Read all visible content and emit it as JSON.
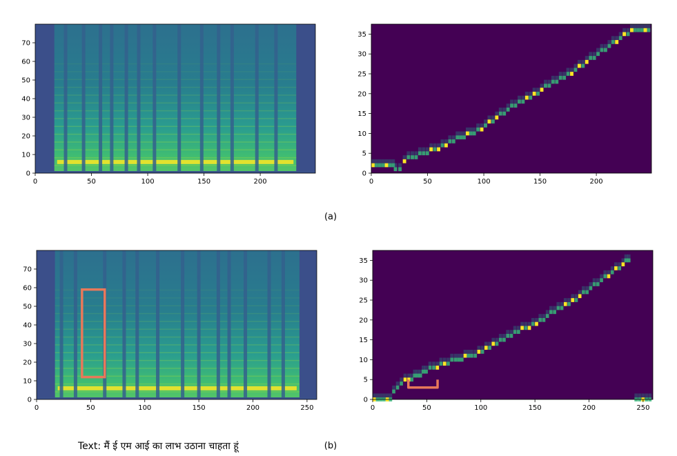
{
  "figure": {
    "panel_a_label": "(a)",
    "panel_b_label": "(b)",
    "caption_text": "Text: मैं ई एम आई का लाभ उठाना चाहता हूं"
  },
  "colors": {
    "viridis_dark": "#440154",
    "viridis_mid": "#21918c",
    "viridis_bright": "#fde725",
    "annotation": "#e8795a"
  },
  "chart_data": [
    {
      "id": "a-mel",
      "type": "heatmap",
      "description_role": "mel spectrogram",
      "x_ticks": [
        0,
        50,
        100,
        150,
        200
      ],
      "y_ticks": [
        0,
        10,
        20,
        30,
        40,
        50,
        60,
        70
      ],
      "xlim": [
        0,
        249
      ],
      "ylim": [
        0,
        80
      ],
      "speech_range": [
        17,
        232
      ],
      "silence_columns": [
        27,
        43,
        58,
        68,
        81,
        92,
        106,
        128,
        148,
        163,
        175,
        197,
        214
      ],
      "harmonic_band_y": 6,
      "xlabel": "",
      "ylabel": "",
      "title": ""
    },
    {
      "id": "a-align",
      "type": "heatmap",
      "description_role": "attention alignment",
      "x_ticks": [
        0,
        50,
        100,
        150,
        200
      ],
      "y_ticks": [
        0,
        5,
        10,
        15,
        20,
        25,
        30,
        35
      ],
      "xlim": [
        0,
        249
      ],
      "ylim": [
        0,
        37.5
      ],
      "path": [
        [
          0,
          2
        ],
        [
          18,
          2
        ],
        [
          20,
          1
        ],
        [
          24,
          1
        ],
        [
          28,
          3
        ],
        [
          35,
          4
        ],
        [
          45,
          5
        ],
        [
          55,
          6
        ],
        [
          65,
          7
        ],
        [
          75,
          9
        ],
        [
          90,
          10
        ],
        [
          100,
          12
        ],
        [
          110,
          14
        ],
        [
          120,
          16
        ],
        [
          130,
          18
        ],
        [
          140,
          19
        ],
        [
          150,
          21
        ],
        [
          160,
          23
        ],
        [
          170,
          24
        ],
        [
          180,
          26
        ],
        [
          190,
          28
        ],
        [
          200,
          30
        ],
        [
          210,
          32
        ],
        [
          220,
          34
        ],
        [
          230,
          36
        ],
        [
          248,
          36
        ]
      ],
      "xlabel": "",
      "ylabel": "",
      "title": ""
    },
    {
      "id": "b-mel",
      "type": "heatmap",
      "description_role": "mel spectrogram",
      "x_ticks": [
        0,
        50,
        100,
        150,
        200,
        250
      ],
      "y_ticks": [
        0,
        10,
        20,
        30,
        40,
        50,
        60,
        70
      ],
      "xlim": [
        0,
        259
      ],
      "ylim": [
        0,
        80
      ],
      "speech_range": [
        17,
        243
      ],
      "silence_columns": [
        23,
        36,
        63,
        81,
        93,
        112,
        135,
        150,
        168,
        178,
        193,
        215,
        228
      ],
      "harmonic_band_y": 6,
      "annotation_box": {
        "x": [
          42,
          63
        ],
        "y": [
          12,
          59
        ]
      },
      "xlabel": "",
      "ylabel": "",
      "title": ""
    },
    {
      "id": "b-align",
      "type": "heatmap",
      "description_role": "attention alignment",
      "x_ticks": [
        0,
        50,
        100,
        150,
        200,
        250
      ],
      "y_ticks": [
        0,
        5,
        10,
        15,
        20,
        25,
        30,
        35
      ],
      "xlim": [
        0,
        259
      ],
      "ylim": [
        0,
        37.5
      ],
      "path": [
        [
          0,
          0
        ],
        [
          15,
          0
        ],
        [
          18,
          2
        ],
        [
          25,
          4
        ],
        [
          32,
          5
        ],
        [
          40,
          6
        ],
        [
          48,
          7
        ],
        [
          55,
          8
        ],
        [
          65,
          9
        ],
        [
          75,
          10
        ],
        [
          90,
          11
        ],
        [
          100,
          12
        ],
        [
          110,
          14
        ],
        [
          120,
          15
        ],
        [
          130,
          17
        ],
        [
          140,
          18
        ],
        [
          150,
          19
        ],
        [
          160,
          21
        ],
        [
          170,
          23
        ],
        [
          180,
          24
        ],
        [
          190,
          26
        ],
        [
          200,
          28
        ],
        [
          210,
          30
        ],
        [
          220,
          32
        ],
        [
          230,
          34
        ],
        [
          238,
          36
        ],
        [
          242,
          0
        ],
        [
          258,
          0
        ]
      ],
      "annotation_bracket": [
        [
          33,
          5
        ],
        [
          33,
          3
        ],
        [
          60,
          3
        ],
        [
          60,
          5
        ]
      ],
      "xlabel": "",
      "ylabel": "",
      "title": ""
    }
  ]
}
